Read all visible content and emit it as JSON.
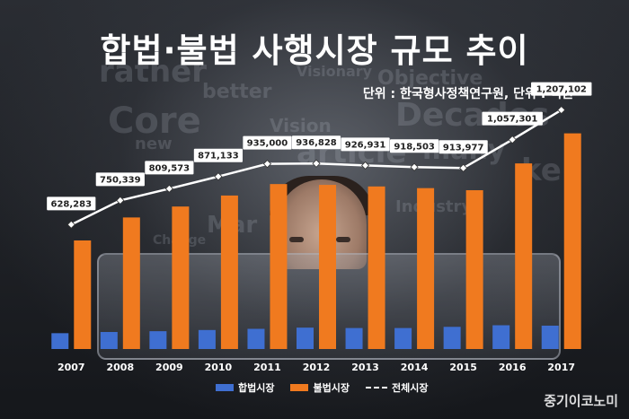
{
  "title": "합법·불법 사행시장 규모 추이",
  "unit_note": "단위 : 한국형사정책연구원, 단위 : 억원",
  "brand": "중기이코노미",
  "colors": {
    "legal": "#3f6fd1",
    "illegal": "#f07a1f",
    "total": "#ffffff"
  },
  "chart_data": {
    "type": "bar",
    "categories": [
      "2007",
      "2008",
      "2009",
      "2010",
      "2011",
      "2012",
      "2013",
      "2014",
      "2015",
      "2016",
      "2017"
    ],
    "series": [
      {
        "name": "합법시장",
        "type": "bar",
        "values": [
          80000,
          86000,
          90000,
          96000,
          102000,
          108000,
          106000,
          106000,
          112000,
          120000,
          118000
        ]
      },
      {
        "name": "불법시장",
        "type": "bar",
        "values": [
          548283,
          664339,
          719573,
          775133,
          833000,
          828828,
          820931,
          812503,
          801977,
          937301,
          1089102
        ]
      },
      {
        "name": "전체시장",
        "type": "line",
        "values": [
          628283,
          750339,
          809573,
          871133,
          935000,
          936828,
          926931,
          918503,
          913977,
          1057301,
          1207102
        ],
        "labels": [
          "628,283",
          "750,339",
          "809,573",
          "871,133",
          "935,000",
          "936,828",
          "926,931",
          "918,503",
          "913,977",
          "1,057,301",
          "1,207,102"
        ]
      }
    ],
    "ylim": [
      0,
      1400000
    ],
    "legend_position": "bottom",
    "grid": false
  }
}
